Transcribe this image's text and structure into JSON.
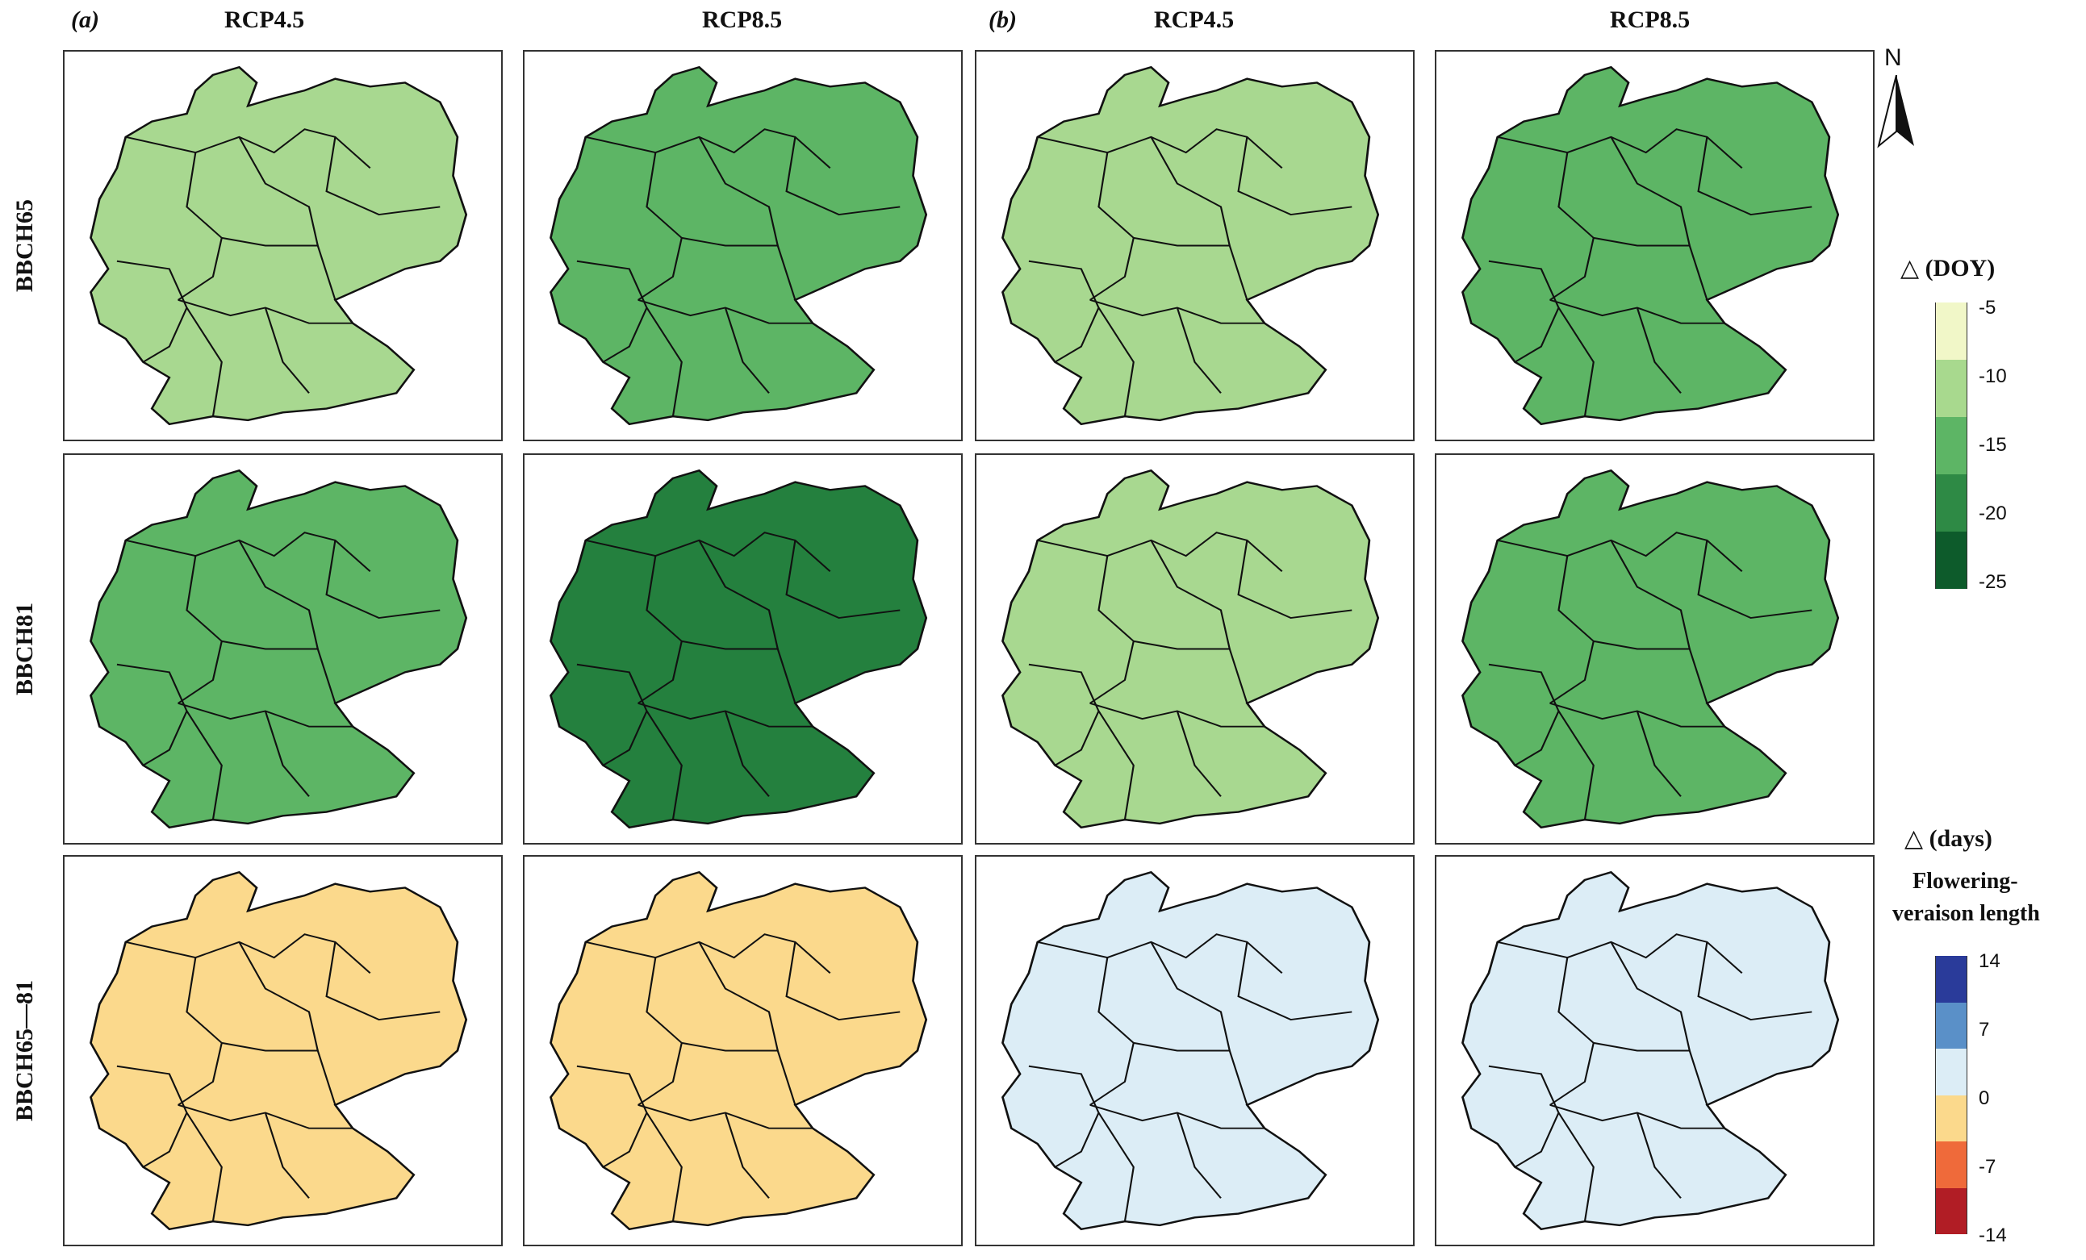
{
  "panel_labels": {
    "a": "(a)",
    "b": "(b)"
  },
  "scenarios": [
    "RCP4.5",
    "RCP8.5",
    "RCP4.5",
    "RCP8.5"
  ],
  "rows": [
    "BBCH65",
    "BBCH81",
    "BBCH65—81"
  ],
  "north_label": "N",
  "legend_doy": {
    "title": "△ (DOY)",
    "ticks": [
      "-5",
      "-10",
      "-15",
      "-20",
      "-25"
    ],
    "colors": [
      "#f1f7c8",
      "#a8d98e",
      "#5db565",
      "#2e8a45",
      "#0d5b2b"
    ]
  },
  "legend_days": {
    "title": "△ (days)",
    "subtitle_line1": "Flowering-",
    "subtitle_line2": "veraison length",
    "ticks": [
      "14",
      "7",
      "0",
      "-7",
      "-14"
    ],
    "colors": [
      "#2a3b9a",
      "#5a90c8",
      "#dcedf6",
      "#fbd98c",
      "#ef6a3a",
      "#b11d25"
    ]
  },
  "map_fills": {
    "r0": [
      "#a8d890",
      "#5db565",
      "#a8d890",
      "#5db565"
    ],
    "r1": [
      "#5db565",
      "#24803e",
      "#a8d890",
      "#5db565"
    ],
    "r2": [
      "#fbd98c",
      "#fbd98c",
      "#dcedf6",
      "#dcedf6"
    ]
  }
}
